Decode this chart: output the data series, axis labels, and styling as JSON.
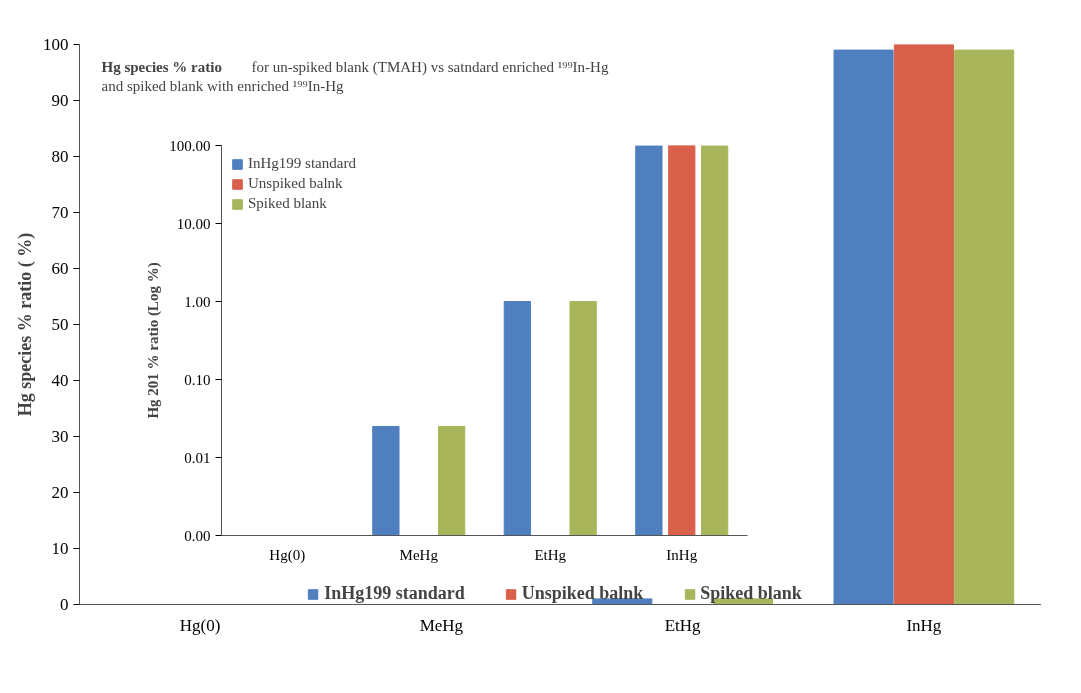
{
  "chart_data": [
    {
      "type": "bar",
      "title": "Hg species % ratio",
      "subtitle": "for un-spiked blank (TMAH) vs satndard enriched ¹⁹⁹In-Hg and spiked blank with enriched ¹⁹⁹In-Hg",
      "ylabel": "Hg species % ratio ( %)",
      "categories": [
        "Hg(0)",
        "MeHg",
        "EtHg",
        "InHg"
      ],
      "series": [
        {
          "name": "InHg199 standard",
          "color": "#4f7fbf",
          "values": [
            0,
            0,
            1,
            99
          ]
        },
        {
          "name": "Unspiked balnk",
          "color": "#d9604a",
          "values": [
            0,
            0,
            0,
            100
          ]
        },
        {
          "name": "Spiked blank",
          "color": "#a8b55a",
          "values": [
            0,
            0,
            1,
            99
          ]
        }
      ],
      "ylim": [
        0,
        100
      ],
      "yticks": [
        0,
        10,
        20,
        30,
        40,
        50,
        60,
        70,
        80,
        90,
        100
      ],
      "grid": false,
      "legend": "bottom"
    },
    {
      "type": "bar",
      "ylabel": "Hg 201 % ratio (Log %)",
      "categories": [
        "Hg(0)",
        "MeHg",
        "EtHg",
        "InHg"
      ],
      "series": [
        {
          "name": "InHg199 standard",
          "color": "#4f7fbf",
          "values": [
            null,
            0.025,
            1,
            99
          ]
        },
        {
          "name": "Unspiked balnk",
          "color": "#d9604a",
          "values": [
            null,
            null,
            null,
            100
          ]
        },
        {
          "name": "Spiked blank",
          "color": "#a8b55a",
          "values": [
            null,
            0.025,
            1,
            99
          ]
        }
      ],
      "log": true,
      "ylim": [
        0.001,
        100
      ],
      "yticks": [
        {
          "value": 0.001,
          "label": "0.00"
        },
        {
          "value": 0.01,
          "label": "0.01"
        },
        {
          "value": 0.1,
          "label": "0.10"
        },
        {
          "value": 1,
          "label": "1.00"
        },
        {
          "value": 10,
          "label": "10.00"
        },
        {
          "value": 100,
          "label": "100.00"
        }
      ],
      "grid": false,
      "legend": "top left"
    }
  ]
}
